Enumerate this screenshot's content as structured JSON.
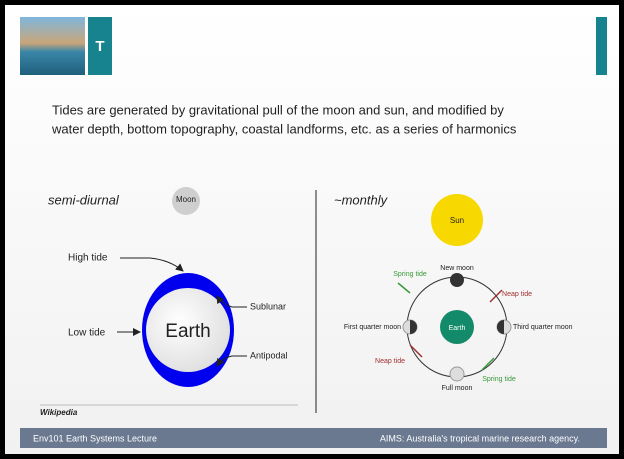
{
  "header": {
    "title": "T"
  },
  "body": {
    "lines": [
      "Tides are generated by gravitational pull of the moon and sun, and modified by",
      "water depth, bottom topography, coastal landforms, etc. as a series of harmonics"
    ]
  },
  "left_diagram": {
    "heading": "semi-diurnal",
    "moon": "Moon",
    "high_tide": "High tide",
    "low_tide": "Low tide",
    "earth": "Earth",
    "sublunar": "Sublunar",
    "antipodal": "Antipodal",
    "source": "Wikipedia"
  },
  "right_diagram": {
    "heading": "~monthly",
    "sun": "Sun",
    "new_moon": "New moon",
    "spring_tide_top": "Spring tide",
    "neap_tide_right": "Neap tide",
    "first_quarter": "First quarter moon",
    "earth": "Earth",
    "third_quarter": "Third quarter moon",
    "neap_tide_left": "Neap tide",
    "full_moon": "Full moon",
    "spring_tide_bottom": "Spring tide"
  },
  "footer": {
    "left": "Env101 Earth Systems Lecture",
    "right": "AIMS: Australia's tropical marine research agency."
  }
}
